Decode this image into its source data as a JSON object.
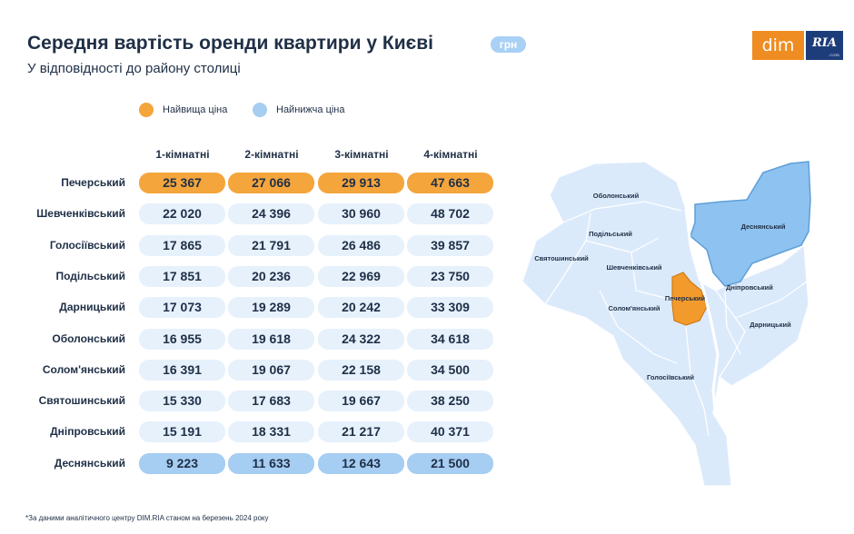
{
  "header": {
    "title": "Середня вартість оренди квартири у Києві",
    "unit_badge": "грн",
    "subtitle": "У відповідності до району столиці"
  },
  "logo": {
    "left": "dim",
    "right": "RIA",
    "right_small": ".com"
  },
  "legend": [
    {
      "label": "Найвища ціна",
      "color": "#f4a53c"
    },
    {
      "label": "Найнижча ціна",
      "color": "#a6cdf2"
    }
  ],
  "colors": {
    "high": "#f4a53c",
    "low": "#a6cdf2",
    "default_cell": "#e6f1fc",
    "map_land": "#dbeafb",
    "map_highlight_high": "#f39a2c",
    "map_highlight_low": "#8ec2f0",
    "text": "#1f2f46"
  },
  "chart_data": {
    "type": "table",
    "title": "Середня вартість оренди квартири у Києві",
    "subtitle": "У відповідності до району столиці",
    "unit": "грн",
    "columns": [
      "1-кімнатні",
      "2-кімнатні",
      "3-кімнатні",
      "4-кімнатні"
    ],
    "rows": [
      {
        "district": "Печерський",
        "values": [
          "25 367",
          "27 066",
          "29 913",
          "47 663"
        ],
        "highlight": "high"
      },
      {
        "district": "Шевченківський",
        "values": [
          "22 020",
          "24 396",
          "30 960",
          "48 702"
        ],
        "highlight": "none"
      },
      {
        "district": "Голосіївський",
        "values": [
          "17 865",
          "21 791",
          "26 486",
          "39 857"
        ],
        "highlight": "none"
      },
      {
        "district": "Подільський",
        "values": [
          "17 851",
          "20 236",
          "22 969",
          "23 750"
        ],
        "highlight": "none"
      },
      {
        "district": "Дарницький",
        "values": [
          "17 073",
          "19 289",
          "20 242",
          "33 309"
        ],
        "highlight": "none"
      },
      {
        "district": "Оболонський",
        "values": [
          "16 955",
          "19 618",
          "24 322",
          "34 618"
        ],
        "highlight": "none"
      },
      {
        "district": "Солом'янський",
        "values": [
          "16 391",
          "19 067",
          "22 158",
          "34 500"
        ],
        "highlight": "none"
      },
      {
        "district": "Святошинський",
        "values": [
          "15 330",
          "17 683",
          "19 667",
          "38 250"
        ],
        "highlight": "none"
      },
      {
        "district": "Дніпровський",
        "values": [
          "15 191",
          "18 331",
          "21 217",
          "40 371"
        ],
        "highlight": "none"
      },
      {
        "district": "Деснянський",
        "values": [
          "9 223",
          "11 633",
          "12 643",
          "21 500"
        ],
        "highlight": "low"
      }
    ]
  },
  "map": {
    "districts": {
      "obolonskyi": "Оболонський",
      "podilskyi": "Подільський",
      "sviatoshynskyi": "Святошинський",
      "shevchenkivskyi": "Шевченківський",
      "solomianskyi": "Солом'янський",
      "pecherskyi": "Печерський",
      "holosiivskyi": "Голосіївський",
      "desnianskyi": "Деснянський",
      "dniprovskyi": "Дніпровський",
      "darnytskyi": "Дарницький"
    }
  },
  "footnote": "*За даними аналітичного центру DIM.RIA станом на березень 2024 року"
}
